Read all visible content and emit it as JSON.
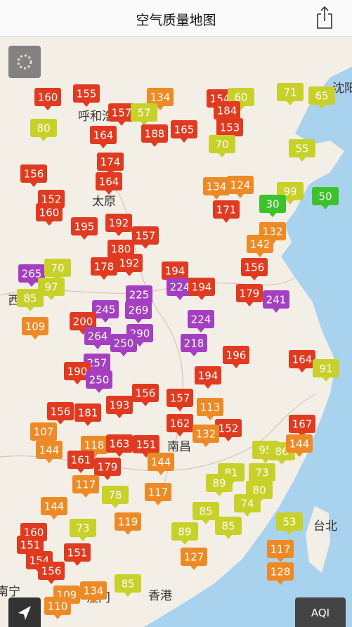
{
  "header": {
    "title": "空气质量地图"
  },
  "places": [
    "呼和浩特",
    "太原",
    "沈阳",
    "西",
    "南昌",
    "香港",
    "台北",
    "澳门",
    "南宁"
  ],
  "markers": [
    160,
    155,
    134,
    154,
    60,
    71,
    65,
    80,
    157,
    57,
    184,
    153,
    164,
    188,
    165,
    70,
    55,
    174,
    156,
    164,
    124,
    134,
    50,
    99,
    30,
    152,
    160,
    195,
    192,
    157,
    171,
    132,
    142,
    180,
    178,
    192,
    156,
    194,
    265,
    70,
    97,
    85,
    225,
    224,
    194,
    179,
    241,
    245,
    269,
    109,
    200,
    224,
    264,
    290,
    250,
    218,
    196,
    257,
    190,
    250,
    194,
    164,
    91,
    156,
    157,
    193,
    156,
    181,
    113,
    162,
    152,
    132,
    167,
    107,
    144,
    118,
    163,
    151,
    95,
    86,
    144,
    161,
    179,
    144,
    73,
    81,
    89,
    80,
    117,
    78,
    117,
    74,
    144,
    85,
    53,
    119,
    73,
    89,
    85,
    160,
    151,
    117,
    151,
    127,
    154,
    156,
    128,
    85,
    134,
    109,
    110
  ],
  "controls": {
    "legend_button": "AQI"
  }
}
